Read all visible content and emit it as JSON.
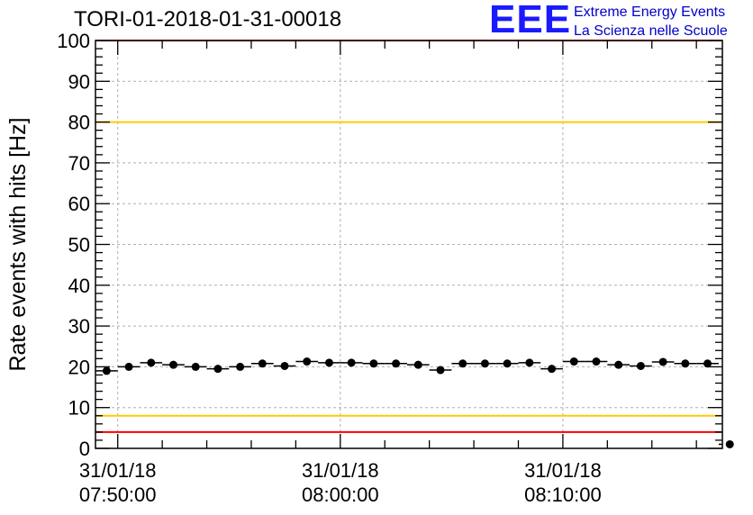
{
  "chart_data": {
    "type": "scatter",
    "title": "TORI-01-2018-01-31-00018",
    "ylabel": "Rate events with hits [Hz]",
    "xlabel": "",
    "ylim": [
      0,
      100
    ],
    "yticks": [
      0,
      10,
      20,
      30,
      40,
      50,
      60,
      70,
      80,
      90,
      100
    ],
    "xlim": [
      "07:49:00",
      "08:17:10"
    ],
    "xticks": [
      {
        "time": "07:50:00",
        "date": "31/01/18",
        "label": "07:50:00"
      },
      {
        "time": "08:00:00",
        "date": "31/01/18",
        "label": "08:00:00"
      },
      {
        "time": "08:10:00",
        "date": "31/01/18",
        "label": "08:10:00"
      }
    ],
    "bin_width_seconds": 60,
    "reference_lines": [
      {
        "value": 100,
        "color": "#ff0000"
      },
      {
        "value": 80,
        "color": "#ffcc00"
      },
      {
        "value": 8,
        "color": "#ffcc00"
      },
      {
        "value": 4,
        "color": "#ff0000"
      }
    ],
    "points": [
      {
        "x": "07:49:00",
        "y": 19.0
      },
      {
        "x": "07:50:00",
        "y": 20.0
      },
      {
        "x": "07:51:00",
        "y": 21.0
      },
      {
        "x": "07:52:00",
        "y": 20.5
      },
      {
        "x": "07:53:00",
        "y": 20.0
      },
      {
        "x": "07:54:00",
        "y": 19.5
      },
      {
        "x": "07:55:00",
        "y": 20.0
      },
      {
        "x": "07:56:00",
        "y": 20.8
      },
      {
        "x": "07:57:00",
        "y": 20.2
      },
      {
        "x": "07:58:00",
        "y": 21.3
      },
      {
        "x": "07:59:00",
        "y": 21.0
      },
      {
        "x": "08:00:00",
        "y": 21.0
      },
      {
        "x": "08:01:00",
        "y": 20.8
      },
      {
        "x": "08:02:00",
        "y": 20.8
      },
      {
        "x": "08:03:00",
        "y": 20.5
      },
      {
        "x": "08:04:00",
        "y": 19.2
      },
      {
        "x": "08:05:00",
        "y": 20.8
      },
      {
        "x": "08:06:00",
        "y": 20.8
      },
      {
        "x": "08:07:00",
        "y": 20.8
      },
      {
        "x": "08:08:00",
        "y": 21.0
      },
      {
        "x": "08:09:00",
        "y": 19.5
      },
      {
        "x": "08:10:00",
        "y": 21.3
      },
      {
        "x": "08:11:00",
        "y": 21.3
      },
      {
        "x": "08:12:00",
        "y": 20.5
      },
      {
        "x": "08:13:00",
        "y": 20.2
      },
      {
        "x": "08:14:00",
        "y": 21.2
      },
      {
        "x": "08:15:00",
        "y": 20.8
      },
      {
        "x": "08:16:00",
        "y": 20.8
      },
      {
        "x": "08:17:00",
        "y": 1.0
      }
    ],
    "grid": true,
    "marker_color": "#000000"
  },
  "logo": {
    "mark": "EEE",
    "line1": "Extreme Energy Events",
    "line2": "La Scienza nelle Scuole",
    "color": "#0000cc"
  }
}
